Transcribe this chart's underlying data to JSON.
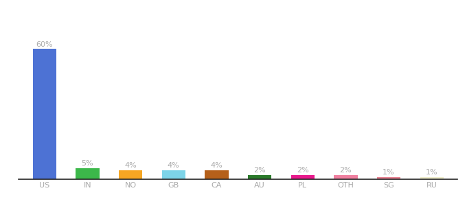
{
  "categories": [
    "US",
    "IN",
    "NO",
    "GB",
    "CA",
    "AU",
    "PL",
    "OTH",
    "SG",
    "RU"
  ],
  "values": [
    60,
    5,
    4,
    4,
    4,
    2,
    2,
    2,
    1,
    1
  ],
  "bar_colors": [
    "#4d72d4",
    "#3cb84a",
    "#f5a623",
    "#7dd4e8",
    "#b5601a",
    "#2a7a2a",
    "#e8198c",
    "#f080a0",
    "#e88090",
    "#f0eecc"
  ],
  "labels": [
    "60%",
    "5%",
    "4%",
    "4%",
    "4%",
    "2%",
    "2%",
    "2%",
    "1%",
    "1%"
  ],
  "background_color": "#ffffff",
  "label_color": "#aaaaaa",
  "label_fontsize": 8,
  "tick_fontsize": 8,
  "tick_color": "#aaaaaa",
  "ylim": [
    0,
    75
  ],
  "bar_width": 0.55,
  "fig_width": 6.8,
  "fig_height": 3.0,
  "dpi": 100
}
